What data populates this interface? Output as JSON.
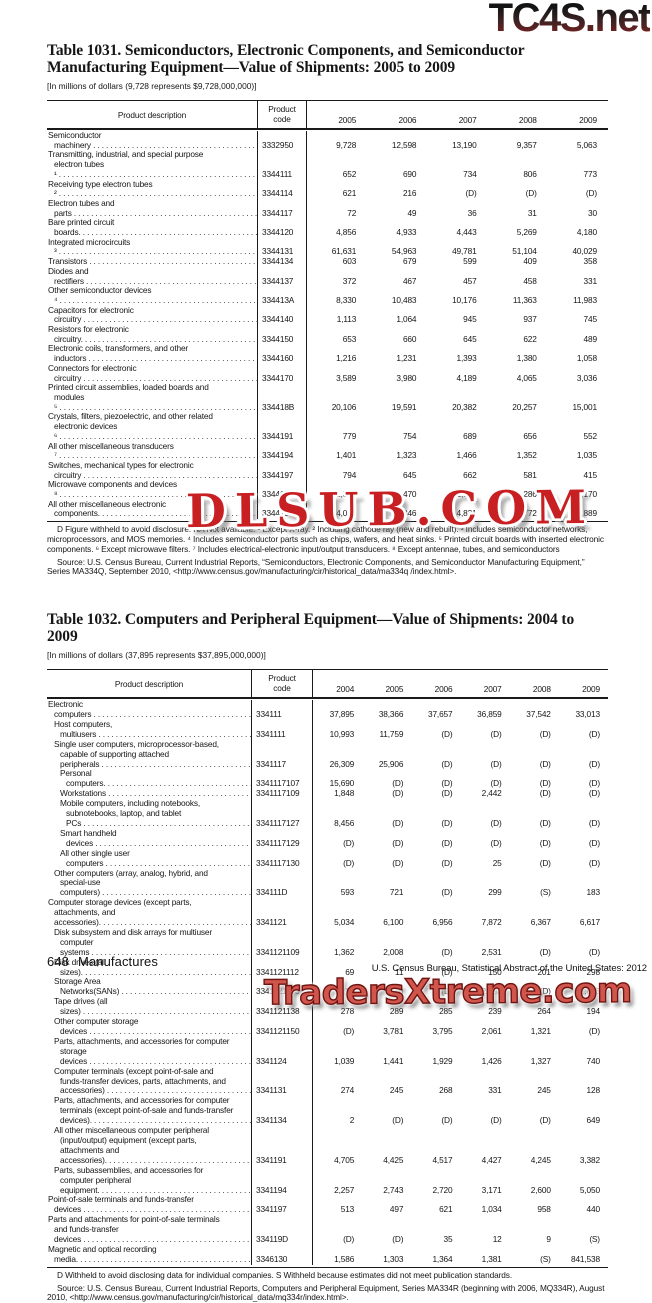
{
  "watermarks": {
    "top_right": "TC4S.net",
    "middle": "DLSUB.COM",
    "bottom": "TradersXtreme.com"
  },
  "page_footer": {
    "page_number": "648",
    "section": "Manufactures",
    "imprint": "U.S. Census Bureau, Statistical Abstract of the United States: 2012"
  },
  "table1031": {
    "title": "Table 1031. Semiconductors, Electronic Components, and Semiconductor Manufacturing Equipment—Value of Shipments: 2005 to 2009",
    "unit_note": "[In millions of dollars (9,728 represents $9,728,000,000)]",
    "desc_header": "Product description",
    "code_header": "Product\ncode",
    "years": [
      "2005",
      "2006",
      "2007",
      "2008",
      "2009"
    ],
    "rows": [
      {
        "lvl": 0,
        "desc": "Semiconductor machinery",
        "code": "3332950",
        "values": [
          "9,728",
          "12,598",
          "13,190",
          "9,357",
          "5,063"
        ]
      },
      {
        "lvl": 0,
        "desc": "Transmitting, industrial, and special purpose\nelectron tubes ¹",
        "code": "3344111",
        "values": [
          "652",
          "690",
          "734",
          "806",
          "773"
        ]
      },
      {
        "lvl": 0,
        "desc": "Receiving type electron tubes ²",
        "code": "3344114",
        "values": [
          "621",
          "216",
          "(D)",
          "(D)",
          "(D)"
        ]
      },
      {
        "lvl": 0,
        "desc": "Electron tubes and parts",
        "code": "3344117",
        "values": [
          "72",
          "49",
          "36",
          "31",
          "30"
        ]
      },
      {
        "lvl": 0,
        "desc": "Bare printed circuit boards.",
        "code": "3344120",
        "values": [
          "4,856",
          "4,933",
          "4,443",
          "5,269",
          "4,180"
        ]
      },
      {
        "lvl": 0,
        "desc": "Integrated microcircuits ³",
        "code": "3344131",
        "values": [
          "61,631",
          "54,963",
          "49,781",
          "51,104",
          "40,029"
        ]
      },
      {
        "lvl": 0,
        "desc": "Transistors",
        "code": "3344134",
        "values": [
          "603",
          "679",
          "599",
          "409",
          "358"
        ]
      },
      {
        "lvl": 0,
        "desc": "Diodes and rectifiers",
        "code": "3344137",
        "values": [
          "372",
          "467",
          "457",
          "458",
          "331"
        ]
      },
      {
        "lvl": 0,
        "desc": "Other semiconductor devices ⁴",
        "code": "334413A",
        "values": [
          "8,330",
          "10,483",
          "10,176",
          "11,363",
          "11,983"
        ]
      },
      {
        "lvl": 0,
        "desc": "Capacitors for electronic circuitry",
        "code": "3344140",
        "values": [
          "1,113",
          "1,064",
          "945",
          "937",
          "745"
        ]
      },
      {
        "lvl": 0,
        "desc": "Resistors for electronic circuitry.",
        "code": "3344150",
        "values": [
          "653",
          "660",
          "645",
          "622",
          "489"
        ]
      },
      {
        "lvl": 0,
        "desc": "Electronic coils, transformers, and other inductors",
        "code": "3344160",
        "values": [
          "1,216",
          "1,231",
          "1,393",
          "1,380",
          "1,058"
        ]
      },
      {
        "lvl": 0,
        "desc": "Connectors for electronic circuitry",
        "code": "3344170",
        "values": [
          "3,589",
          "3,980",
          "4,189",
          "4,065",
          "3,036"
        ]
      },
      {
        "lvl": 0,
        "desc": "Printed circuit assemblies, loaded boards and\nmodules ⁵",
        "code": "334418B",
        "values": [
          "20,106",
          "19,591",
          "20,382",
          "20,257",
          "15,001"
        ]
      },
      {
        "lvl": 0,
        "desc": "Crystals, filters, piezoelectric, and other related\nelectronic devices ⁶",
        "code": "3344191",
        "values": [
          "779",
          "754",
          "689",
          "656",
          "552"
        ]
      },
      {
        "lvl": 0,
        "desc": "All other miscellaneous transducers ⁷",
        "code": "3344194",
        "values": [
          "1,401",
          "1,323",
          "1,466",
          "1,352",
          "1,035"
        ]
      },
      {
        "lvl": 0,
        "desc": "Switches, mechanical types for electronic circuitry",
        "code": "3344197",
        "values": [
          "794",
          "645",
          "662",
          "581",
          "415"
        ]
      },
      {
        "lvl": 0,
        "desc": "Microwave components and devices ⁸",
        "code": "334419A",
        "values": [
          "1,306",
          "1,470",
          "1,541",
          "1,286",
          "1,170"
        ]
      },
      {
        "lvl": 0,
        "desc": "All other miscellaneous electronic components.",
        "code": "334419E",
        "values": [
          "4,040",
          "4,346",
          "4,831",
          "4,772",
          "3,889"
        ]
      }
    ],
    "footnotes": "D Figure withheld to avoid disclosure. NA Not available. ¹ Except X-ray. ² Including cathode ray (new and rebuilt). ³ Includes semiconductor networks, microprocessors, and MOS memories. ⁴ Includes semiconductor parts such as chips, wafers, and heat sinks. ⁵ Printed circuit boards with inserted electronic components. ⁶ Except microwave filters. ⁷ Includes electrical-electronic input/output transducers. ⁸ Except antennae, tubes, and semiconductors",
    "source": "Source: U.S. Census Bureau, Current Industrial Reports, “Semiconductors, Electronic Components, and Semiconductor Manufacturing Equipment,” Series MA334Q, September 2010, <http://www.census.gov/manufacturing/cir/historical_data/ma334q /index.html>."
  },
  "table1032": {
    "title": "Table 1032. Computers and Peripheral Equipment—Value of Shipments: 2004 to 2009",
    "unit_note": "[In millions of dollars (37,895 represents $37,895,000,000)]",
    "desc_header": "Product description",
    "code_header": "Product\ncode",
    "years": [
      "2004",
      "2005",
      "2006",
      "2007",
      "2008",
      "2009"
    ],
    "rows": [
      {
        "lvl": 0,
        "desc": "Electronic computers",
        "code": "334111",
        "values": [
          "37,895",
          "38,366",
          "37,657",
          "36,859",
          "37,542",
          "33,013"
        ]
      },
      {
        "lvl": 1,
        "desc": "Host computers, multiusers",
        "code": "3341111",
        "values": [
          "10,993",
          "11,759",
          "(D)",
          "(D)",
          "(D)",
          "(D)"
        ]
      },
      {
        "lvl": 1,
        "desc": "Single user computers, microprocessor-based,\ncapable of supporting attached peripherals",
        "code": "3341117",
        "values": [
          "26,309",
          "25,906",
          "(D)",
          "(D)",
          "(D)",
          "(D)"
        ]
      },
      {
        "lvl": 2,
        "desc": "Personal computers.",
        "code": "3341117107",
        "values": [
          "15,690",
          "(D)",
          "(D)",
          "(D)",
          "(D)",
          "(D)"
        ]
      },
      {
        "lvl": 2,
        "desc": "Workstations",
        "code": "3341117109",
        "values": [
          "1,848",
          "(D)",
          "(D)",
          "2,442",
          "(D)",
          "(D)"
        ]
      },
      {
        "lvl": 2,
        "desc": "Mobile computers, including notebooks,\nsubnotebooks, laptop, and tablet PCs",
        "code": "3341117127",
        "values": [
          "8,456",
          "(D)",
          "(D)",
          "(D)",
          "(D)",
          "(D)"
        ]
      },
      {
        "lvl": 2,
        "desc": "Smart handheld devices",
        "code": "3341117129",
        "values": [
          "(D)",
          "(D)",
          "(D)",
          "(D)",
          "(D)",
          "(D)"
        ]
      },
      {
        "lvl": 2,
        "desc": "All other single user computers",
        "code": "3341117130",
        "values": [
          "(D)",
          "(D)",
          "(D)",
          "25",
          "(D)",
          "(D)"
        ]
      },
      {
        "lvl": 1,
        "desc": "Other computers (array, analog, hybrid, and\nspecial-use computers)",
        "code": "334111D",
        "values": [
          "593",
          "721",
          "(D)",
          "299",
          "(S)",
          "183"
        ]
      },
      {
        "lvl": 0,
        "desc": "Computer storage devices (except parts,\nattachments, and accessories).",
        "code": "3341121",
        "values": [
          "5,034",
          "6,100",
          "6,956",
          "7,872",
          "6,367",
          "6,617"
        ]
      },
      {
        "lvl": 1,
        "desc": "Disk subsystem and disk arrays for multiuser\ncomputer systems",
        "code": "3341121109",
        "values": [
          "1,362",
          "2,008",
          "(D)",
          "2,531",
          "(D)",
          "(D)"
        ]
      },
      {
        "lvl": 1,
        "desc": "Disk drives (all sizes).",
        "code": "3341121112",
        "values": [
          "69",
          "11",
          "(D)",
          "150",
          "201",
          "298"
        ]
      },
      {
        "lvl": 1,
        "desc": "Storage Area Networks(SANs)",
        "code": "3341121123",
        "values": [
          "(D)",
          "10",
          "(D)",
          "2,892",
          "(D)",
          "2,683"
        ]
      },
      {
        "lvl": 1,
        "desc": "Tape drives (all sizes)",
        "code": "3341121138",
        "values": [
          "278",
          "289",
          "285",
          "239",
          "264",
          "194"
        ]
      },
      {
        "lvl": 1,
        "desc": "Other computer storage devices",
        "code": "3341121150",
        "values": [
          "(D)",
          "3,781",
          "3,795",
          "2,061",
          "1,321",
          "(D)"
        ]
      },
      {
        "lvl": 1,
        "desc": "Parts, attachments, and accessories for computer\nstorage devices",
        "code": "3341124",
        "values": [
          "1,039",
          "1,441",
          "1,929",
          "1,426",
          "1,327",
          "740"
        ]
      },
      {
        "lvl": 1,
        "desc": "Computer terminals (except point-of-sale and\nfunds-transfer devices, parts, attachments, and\naccessories)",
        "code": "3341131",
        "values": [
          "274",
          "245",
          "268",
          "331",
          "245",
          "128"
        ]
      },
      {
        "lvl": 1,
        "desc": "Parts, attachments, and accessories for computer\nterminals (except point-of-sale and funds-transfer\ndevices).",
        "code": "3341134",
        "values": [
          "2",
          "(D)",
          "(D)",
          "(D)",
          "(D)",
          "649"
        ]
      },
      {
        "lvl": 1,
        "desc": "All other miscellaneous computer peripheral\n(input/output) equipment (except parts,\nattachments and accessories).",
        "code": "3341191",
        "values": [
          "4,705",
          "4,425",
          "4,517",
          "4,427",
          "4,245",
          "3,382"
        ]
      },
      {
        "lvl": 1,
        "desc": "Parts, subassemblies, and accessories for\ncomputer peripheral equipment.",
        "code": "3341194",
        "values": [
          "2,257",
          "2,743",
          "2,720",
          "3,171",
          "2,600",
          "5,050"
        ]
      },
      {
        "lvl": 0,
        "desc": "Point-of-sale terminals and funds-transfer devices",
        "code": "3341197",
        "values": [
          "513",
          "497",
          "621",
          "1,034",
          "958",
          "440"
        ]
      },
      {
        "lvl": 0,
        "desc": "Parts and attachments for point-of-sale terminals\nand funds-transfer devices",
        "code": "334119D",
        "values": [
          "(D)",
          "(D)",
          "35",
          "12",
          "9",
          "(S)"
        ]
      },
      {
        "lvl": 0,
        "desc": "Magnetic and optical recording media.",
        "code": "3346130",
        "values": [
          "1,586",
          "1,303",
          "1,364",
          "1,381",
          "(S)",
          "841,538"
        ]
      }
    ],
    "footnotes": "D Withheld to avoid disclosing data for individual companies. S Withheld because estimates did not meet publication standards.",
    "source": "Source: U.S. Census Bureau, Current Industrial Reports, Computers and Peripheral Equipment, Series MA334R (beginning with 2006, MQ334R), August 2010, <http://www.census.gov/manufacturing/cir/historical_data/mq334r/index.html>."
  }
}
